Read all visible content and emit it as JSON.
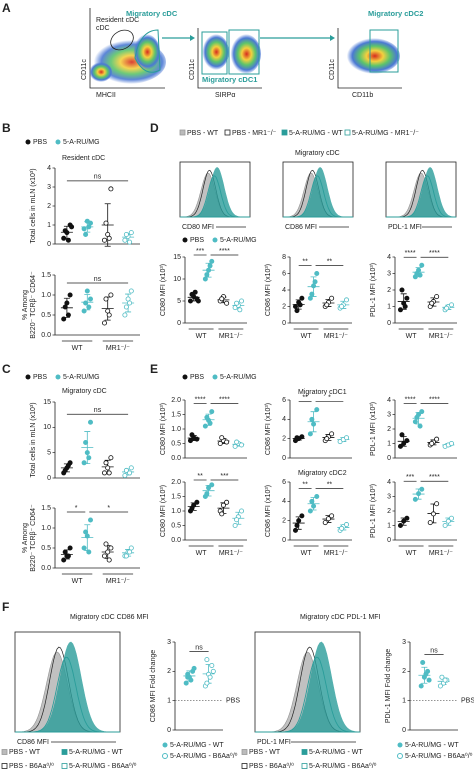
{
  "panel_labels": [
    "A",
    "B",
    "C",
    "D",
    "E",
    "F"
  ],
  "flow": {
    "gates": [
      "Resident cDC",
      "Migratory cDC",
      "Migratory cDC1",
      "Migratory cDC2"
    ],
    "axes": [
      [
        "CD11c",
        "MHCII"
      ],
      [
        "CD11c",
        "SIRPα"
      ],
      [
        "CD11c",
        "CD11b"
      ]
    ]
  },
  "legends": {
    "treatment": [
      "PBS",
      "5-A-RU/MG"
    ],
    "genotype_hist": [
      "PBS - WT",
      "PBS - MR1⁻/⁻",
      "5-A-RU/MG - WT",
      "5-A-RU/MG - MR1⁻/⁻"
    ],
    "f_hist": [
      "PBS - WT",
      "5-A-RU/MG - WT",
      "PBS - B6Aa⁰/⁰",
      "5-A-RU/MG - B6Aa⁰/⁰"
    ]
  },
  "titles": {
    "B": "Resident cDC",
    "C": "Migratory cDC",
    "D": "Migratory cDC",
    "E1": "Migratory cDC1",
    "E2": "Migratory cDC2",
    "F1": "Migratory cDC CD86 MFI",
    "F2": "Migratory cDC PDL-1 MFI"
  },
  "histogram_labels": [
    "CD80 MFI",
    "CD86 MFI",
    "PDL-1 MFI",
    "CD86 MFI",
    "PDL-1 MFI"
  ],
  "plots": [
    {
      "ylabel": [
        "Total cells in mLN (x10³)"
      ],
      "ylim": [
        0,
        4
      ],
      "yticks": [
        0,
        1,
        2,
        3,
        4
      ],
      "groups": [
        [
          0.3,
          0.6,
          1.0,
          0.7,
          0.2,
          0.9
        ],
        [
          0.8,
          1.2,
          1.1,
          0.5,
          0.9
        ],
        [
          0.2,
          0.5,
          2.9,
          1.1,
          0.3
        ],
        [
          0.2,
          0.4,
          0.6,
          0.5,
          0.1
        ]
      ],
      "sig": [
        "ns"
      ]
    },
    {
      "ylabel": [
        "% Among",
        "B220⁻ TCRβ⁻ CD64⁻"
      ],
      "ylim": [
        0,
        1.5
      ],
      "yticks": [
        {
          "value": 0,
          "label": "0.0"
        },
        {
          "value": 0.5,
          "label": "0.5"
        },
        {
          "value": 1,
          "label": "1.0"
        },
        {
          "value": 1.5,
          "label": "1.5"
        }
      ],
      "groups": [
        [
          0.4,
          0.8,
          1.0,
          0.7,
          0.5
        ],
        [
          0.6,
          1.1,
          0.9,
          0.8,
          0.7
        ],
        [
          0.3,
          0.6,
          1.0,
          0.9,
          0.5
        ],
        [
          0.5,
          0.9,
          1.1,
          0.7,
          0.8
        ]
      ],
      "sig": [
        "ns"
      ],
      "xlabels": [
        "WT",
        "MR1⁻/⁻"
      ]
    },
    {
      "ylabel": [
        "Total cells in mLN (x10³)"
      ],
      "ylim": [
        0,
        15
      ],
      "yticks": [
        0,
        5,
        10,
        15
      ],
      "groups": [
        [
          1,
          2,
          3,
          1.5,
          2.5
        ],
        [
          3,
          5,
          11,
          7,
          4
        ],
        [
          1,
          2,
          4,
          3,
          1
        ],
        [
          0.5,
          1,
          2,
          1.5,
          1
        ]
      ],
      "sig": [
        "ns"
      ]
    },
    {
      "ylabel": [
        "% Among",
        "B220⁻ TCRβ⁻ CD64⁻"
      ],
      "ylim": [
        0,
        1.5
      ],
      "yticks": [
        {
          "value": 0,
          "label": "0.0"
        },
        {
          "value": 0.5,
          "label": "0.5"
        },
        {
          "value": 1,
          "label": "1.0"
        },
        {
          "value": 1.5,
          "label": "1.5"
        }
      ],
      "groups": [
        [
          0.2,
          0.3,
          0.5,
          0.4,
          0.3
        ],
        [
          0.5,
          0.8,
          1.2,
          0.9,
          0.4
        ],
        [
          0.3,
          0.4,
          0.5,
          0.6,
          0.2
        ],
        [
          0.3,
          0.4,
          0.5,
          0.3,
          0.4
        ]
      ],
      "sig": [
        "*",
        "*"
      ],
      "xlabels": [
        "WT",
        "MR1⁻/⁻"
      ]
    },
    {
      "ylabel": [
        "CD80 MFI (x10³)"
      ],
      "ylim": [
        0,
        15
      ],
      "yticks": [
        0,
        5,
        10,
        15
      ],
      "groups": [
        [
          5,
          6,
          5.5,
          6.5,
          7,
          5
        ],
        [
          10,
          12,
          14,
          11,
          13
        ],
        [
          5,
          6,
          4.5,
          5.5
        ],
        [
          3.5,
          4,
          5,
          4.5,
          3
        ]
      ],
      "sig": [
        "***",
        "****"
      ],
      "xlabels": [
        "WT",
        "MR1⁻/⁻"
      ]
    },
    {
      "ylabel": [
        "CD86 MFI (x10³)"
      ],
      "ylim": [
        0,
        8
      ],
      "yticks": [
        0,
        2,
        4,
        6,
        8
      ],
      "groups": [
        [
          2,
          2.5,
          3,
          1.5,
          2.2
        ],
        [
          3,
          4.5,
          6,
          3.5,
          5
        ],
        [
          2,
          2.5,
          3,
          2.2
        ],
        [
          1.8,
          2.2,
          2.8,
          2
        ]
      ],
      "sig": [
        "**",
        "**"
      ],
      "xlabels": [
        "WT",
        "MR1⁻/⁻"
      ]
    },
    {
      "ylabel": [
        "PDL-1 MFI (x10³)"
      ],
      "ylim": [
        0,
        4
      ],
      "yticks": [
        0,
        1,
        2,
        3,
        4
      ],
      "groups": [
        [
          0.8,
          1.2,
          1.5,
          2,
          1
        ],
        [
          2.8,
          3.2,
          3.5,
          3,
          2.9
        ],
        [
          1,
          1.3,
          1.6,
          1.2
        ],
        [
          0.8,
          1,
          1.1,
          0.9
        ]
      ],
      "sig": [
        "****",
        "****"
      ],
      "xlabels": [
        "WT",
        "MR1⁻/⁻"
      ]
    },
    {
      "ylabel": [
        "CD80 MFI (x10³)"
      ],
      "ylim": [
        0,
        2
      ],
      "yticks": [
        {
          "value": 0,
          "label": "0.0"
        },
        {
          "value": 0.5,
          "label": "0.5"
        },
        {
          "value": 1,
          "label": "1.0"
        },
        {
          "value": 1.5,
          "label": "1.5"
        },
        {
          "value": 2,
          "label": "2.0"
        }
      ],
      "groups": [
        [
          0.6,
          0.7,
          0.65,
          0.8
        ],
        [
          1.1,
          1.3,
          1.6,
          1.4,
          1.2
        ],
        [
          0.5,
          0.6,
          0.55,
          0.7
        ],
        [
          0.4,
          0.5,
          0.45,
          0.55
        ]
      ],
      "sig": [
        "****",
        "****"
      ]
    },
    {
      "ylabel": [
        "CD86 MFI (x10³)"
      ],
      "ylim": [
        0,
        6
      ],
      "yticks": [
        0,
        2,
        4,
        6
      ],
      "groups": [
        [
          1.8,
          2,
          2.2,
          2.1
        ],
        [
          2.5,
          3.5,
          5,
          4
        ],
        [
          1.8,
          2.2,
          2.5,
          2
        ],
        [
          1.7,
          1.9,
          2.1
        ]
      ],
      "sig": [
        "**",
        "*"
      ]
    },
    {
      "ylabel": [
        "PDL-1 MFI (x10³)"
      ],
      "ylim": [
        0,
        4
      ],
      "yticks": [
        0,
        1,
        2,
        3,
        4
      ],
      "groups": [
        [
          0.8,
          1,
          1.2,
          1.6
        ],
        [
          2.5,
          3,
          3.2,
          2.8,
          2.2
        ],
        [
          0.9,
          1.1,
          1.3,
          1
        ],
        [
          0.8,
          0.9,
          1
        ]
      ],
      "sig": [
        "****",
        "****"
      ]
    },
    {
      "ylabel": [
        "CD80 MFI (x10³)"
      ],
      "ylim": [
        0,
        2
      ],
      "yticks": [
        {
          "value": 0,
          "label": "0.0"
        },
        {
          "value": 0.5,
          "label": "0.5"
        },
        {
          "value": 1,
          "label": "1.0"
        },
        {
          "value": 1.5,
          "label": "1.5"
        },
        {
          "value": 2,
          "label": "2.0"
        }
      ],
      "groups": [
        [
          1,
          1.2,
          1.3,
          1.1
        ],
        [
          1.5,
          1.8,
          1.9,
          1.6
        ],
        [
          1,
          1.2,
          1.3,
          0.9
        ],
        [
          0.5,
          0.8,
          1,
          0.7
        ]
      ],
      "sig": [
        "**",
        "***"
      ],
      "xlabels": [
        "WT",
        "MR1⁻/⁻"
      ]
    },
    {
      "ylabel": [
        "CD86 MFI (x10³)"
      ],
      "ylim": [
        0,
        6
      ],
      "yticks": [
        0,
        2,
        4,
        6
      ],
      "groups": [
        [
          1,
          2,
          2.5,
          1.5
        ],
        [
          3,
          3.5,
          4.5,
          4
        ],
        [
          1.8,
          2.2,
          2.5
        ],
        [
          1,
          1.4,
          1.6,
          1.2
        ]
      ],
      "sig": [
        "**",
        "**"
      ],
      "xlabels": [
        "WT",
        "MR1⁻/⁻"
      ]
    },
    {
      "ylabel": [
        "PDL-1 MFI (x10³)"
      ],
      "ylim": [
        0,
        4
      ],
      "yticks": [
        0,
        1,
        2,
        3,
        4
      ],
      "groups": [
        [
          1,
          1.3,
          1.5
        ],
        [
          2.8,
          3.2,
          3.5
        ],
        [
          1.2,
          1.8,
          2.5
        ],
        [
          1,
          1.3,
          1.5
        ]
      ],
      "sig": [
        "***",
        "****"
      ],
      "xlabels": [
        "WT",
        "MR1⁻/⁻"
      ]
    },
    {
      "ylabel": [
        "CD86 MFI Fold change"
      ],
      "ylim": [
        0,
        3
      ],
      "yticks": [
        0,
        1,
        2,
        3
      ],
      "groups": [
        [
          1.6,
          1.8,
          2,
          1.9,
          1.7,
          2.1,
          1.8
        ],
        [
          1.5,
          1.9,
          2.2,
          2.4,
          1.8,
          2,
          1.6
        ]
      ],
      "sig": [
        "ns"
      ],
      "reference": {
        "value": 1,
        "label": "PBS"
      }
    },
    {
      "ylabel": [
        "PDL-1 MFI Fold change"
      ],
      "ylim": [
        0,
        3
      ],
      "yticks": [
        0,
        1,
        2,
        3
      ],
      "groups": [
        [
          1.5,
          1.8,
          2,
          2.3,
          1.9,
          1.7
        ],
        [
          1.5,
          1.6,
          1.7,
          1.8,
          1.7
        ]
      ],
      "sig": [
        "ns"
      ],
      "reference": {
        "value": 1,
        "label": "PBS"
      }
    }
  ]
}
